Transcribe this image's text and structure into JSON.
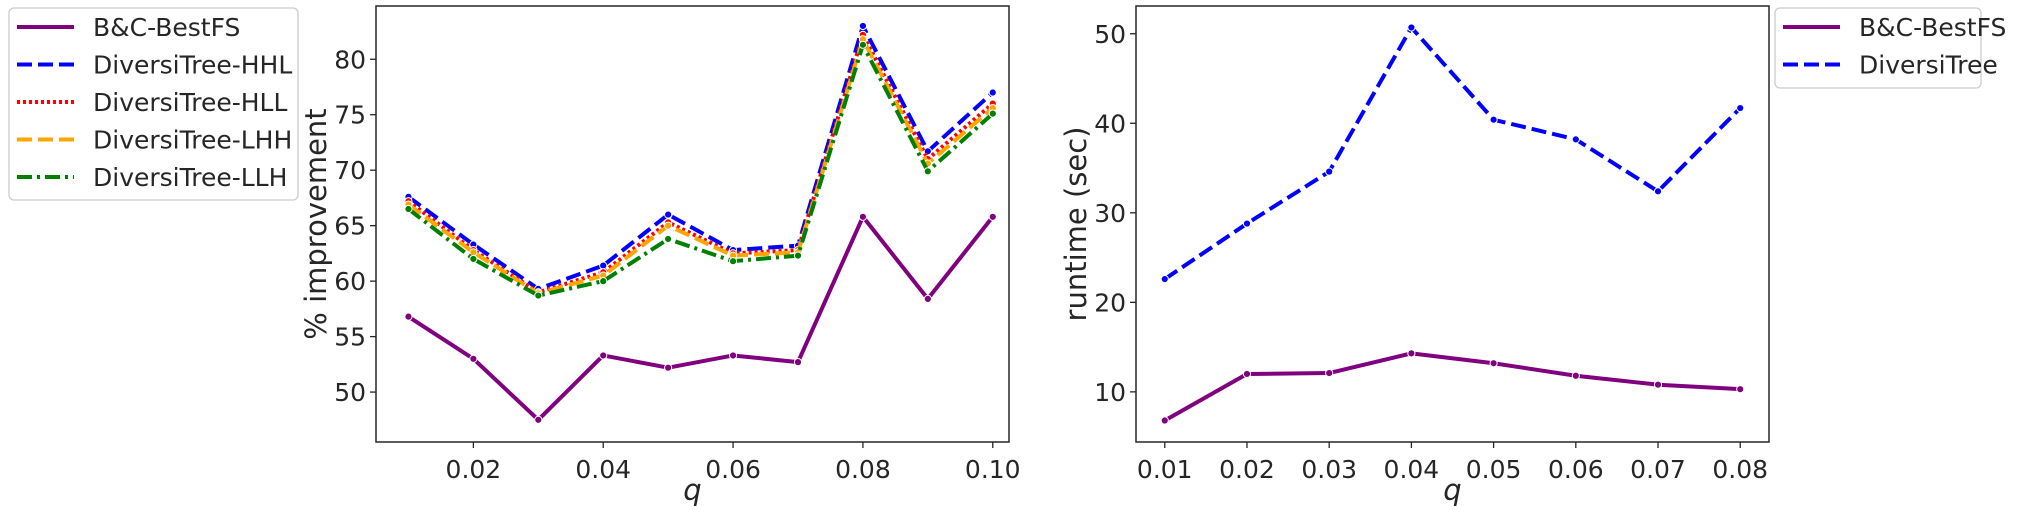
{
  "chart_data": [
    {
      "type": "line",
      "xlabel": "q",
      "ylabel": "% improvement",
      "x": [
        0.01,
        0.02,
        0.03,
        0.04,
        0.05,
        0.06,
        0.07,
        0.08,
        0.09,
        0.1
      ],
      "x_ticks": [
        0.02,
        0.04,
        0.06,
        0.08,
        0.1
      ],
      "x_tick_labels": [
        "0.02",
        "0.04",
        "0.06",
        "0.08",
        "0.10"
      ],
      "xlim": [
        0.005,
        0.1025
      ],
      "y_ticks": [
        50,
        55,
        60,
        65,
        70,
        75,
        80
      ],
      "y_tick_labels": [
        "50",
        "55",
        "60",
        "65",
        "70",
        "75",
        "80"
      ],
      "ylim": [
        45.5,
        84.8
      ],
      "grid": false,
      "legend_placement": "outside-left",
      "series": [
        {
          "name": "B&C-BestFS",
          "color": "#800080",
          "dash": "solid",
          "values": [
            56.8,
            53.0,
            47.5,
            53.3,
            52.2,
            53.3,
            52.7,
            65.8,
            58.4,
            65.8
          ]
        },
        {
          "name": "DiversiTree-HHL",
          "color": "#0000ff",
          "dash": "dashed",
          "values": [
            67.6,
            63.3,
            59.3,
            61.4,
            66.0,
            62.8,
            63.2,
            83.0,
            71.7,
            77.0
          ]
        },
        {
          "name": "DiversiTree-HLL",
          "color": "#ff0000",
          "dash": "dotted",
          "values": [
            67.2,
            62.8,
            59.0,
            60.8,
            65.3,
            62.5,
            62.8,
            82.2,
            71.0,
            76.0
          ]
        },
        {
          "name": "DiversiTree-LHH",
          "color": "#ffa500",
          "dash": "dashed",
          "values": [
            66.9,
            62.6,
            58.9,
            60.5,
            65.0,
            62.3,
            62.6,
            81.8,
            70.6,
            75.6
          ]
        },
        {
          "name": "DiversiTree-LLH",
          "color": "#008000",
          "dash": "dashdot",
          "values": [
            66.5,
            62.0,
            58.7,
            60.0,
            63.8,
            61.8,
            62.3,
            81.3,
            69.9,
            75.1
          ]
        }
      ]
    },
    {
      "type": "line",
      "xlabel": "q",
      "ylabel": "runtime (sec)",
      "x": [
        0.01,
        0.02,
        0.03,
        0.04,
        0.05,
        0.06,
        0.07,
        0.08
      ],
      "x_ticks": [
        0.01,
        0.02,
        0.03,
        0.04,
        0.05,
        0.06,
        0.07,
        0.08
      ],
      "x_tick_labels": [
        "0.01",
        "0.02",
        "0.03",
        "0.04",
        "0.05",
        "0.06",
        "0.07",
        "0.08"
      ],
      "xlim": [
        0.0065,
        0.0835
      ],
      "y_ticks": [
        10,
        20,
        30,
        40,
        50
      ],
      "y_tick_labels": [
        "10",
        "20",
        "30",
        "40",
        "50"
      ],
      "ylim": [
        4.4,
        53.1
      ],
      "grid": false,
      "legend_placement": "outside-right",
      "series": [
        {
          "name": "B&C-BestFS",
          "color": "#800080",
          "dash": "solid",
          "values": [
            6.8,
            12.0,
            12.1,
            14.3,
            13.2,
            11.8,
            10.8,
            10.3
          ]
        },
        {
          "name": "DiversiTree",
          "color": "#0000ff",
          "dash": "dashed",
          "values": [
            22.6,
            28.8,
            34.6,
            50.7,
            40.4,
            38.2,
            32.4,
            41.7
          ]
        }
      ]
    }
  ]
}
